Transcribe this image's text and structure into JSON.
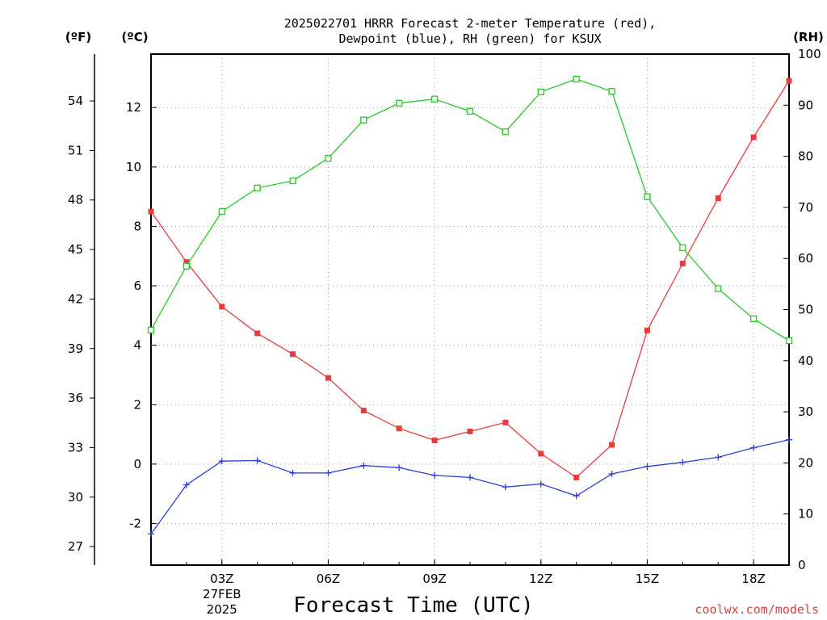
{
  "chart_data": {
    "type": "line",
    "title_line1": "2025022701 HRRR Forecast 2-meter Temperature (red),",
    "title_line2": "Dewpoint (blue), RH (green) for KSUX",
    "xlabel": "Forecast Time (UTC)",
    "credit": "coolwx.com/models",
    "units": {
      "fahrenheit": "(ºF)",
      "celsius": "(ºC)",
      "rh": "(RH)"
    },
    "x_hours": [
      1,
      2,
      3,
      4,
      5,
      6,
      7,
      8,
      9,
      10,
      11,
      12,
      13,
      14,
      15,
      16,
      17,
      18,
      19
    ],
    "xlim": [
      1,
      19
    ],
    "x_ticks": [
      {
        "hour": 3,
        "label": "03Z",
        "date": "27FEB",
        "year": "2025"
      },
      {
        "hour": 6,
        "label": "06Z"
      },
      {
        "hour": 9,
        "label": "09Z"
      },
      {
        "hour": 12,
        "label": "12Z"
      },
      {
        "hour": 15,
        "label": "15Z"
      },
      {
        "hour": 18,
        "label": "18Z"
      }
    ],
    "ylim_celsius": [
      -3.4,
      13.8
    ],
    "y_ticks_celsius": [
      "-2",
      "0",
      "2",
      "4",
      "6",
      "8",
      "10",
      "12"
    ],
    "y_ticks_fahrenheit": [
      "27",
      "30",
      "33",
      "36",
      "39",
      "42",
      "45",
      "48",
      "51",
      "54"
    ],
    "ylim_rh": [
      0,
      100
    ],
    "y_ticks_rh": [
      "0",
      "10",
      "20",
      "30",
      "40",
      "50",
      "60",
      "70",
      "80",
      "90",
      "100"
    ],
    "grid": true,
    "series": [
      {
        "name": "2-meter Temperature",
        "axis": "celsius",
        "color": "#e83c3c",
        "marker": "filled-square",
        "values": [
          8.5,
          6.8,
          5.3,
          4.4,
          3.7,
          2.9,
          1.8,
          1.2,
          0.8,
          1.1,
          1.4,
          0.35,
          -0.45,
          0.65,
          4.5,
          6.75,
          8.95,
          11.0,
          12.9
        ]
      },
      {
        "name": "Dewpoint",
        "axis": "celsius",
        "color": "#2a3fdc",
        "marker": "plus",
        "values": [
          -2.35,
          -0.7,
          0.1,
          0.12,
          -0.3,
          -0.3,
          -0.05,
          -0.12,
          -0.38,
          -0.45,
          -0.77,
          -0.67,
          -1.07,
          -0.33,
          -0.08,
          0.06,
          0.23,
          0.55,
          0.82
        ]
      },
      {
        "name": "RH",
        "axis": "rh",
        "color": "#22cc22",
        "marker": "open-square",
        "values": [
          46,
          58.5,
          69.2,
          73.8,
          75.2,
          79.6,
          87.1,
          90.4,
          91.2,
          88.8,
          84.8,
          92.6,
          95.1,
          92.7,
          72.1,
          62.1,
          54.1,
          48.2,
          43.9
        ]
      }
    ]
  }
}
